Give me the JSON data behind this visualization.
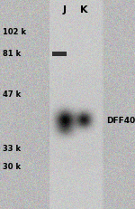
{
  "fig_width": 1.5,
  "fig_height": 2.32,
  "dpi": 100,
  "bg_color": "#d0d0d0",
  "noise_seed": 42,
  "lane_labels": [
    "J",
    "K"
  ],
  "lane_label_fontsize": 8,
  "lane_label_fontweight": "bold",
  "mw_labels": [
    "102 k",
    "81 k",
    "47 k",
    "33 k",
    "30 k"
  ],
  "mw_fontsize": 6,
  "mw_fontweight": "bold",
  "band_annotation": "DFF40",
  "band_annotation_fontsize": 6.5,
  "band_annotation_fontweight": "bold",
  "noise_level": 18,
  "blot_mean": 195,
  "blot_std": 8,
  "outer_mean": 185,
  "outer_std": 10
}
